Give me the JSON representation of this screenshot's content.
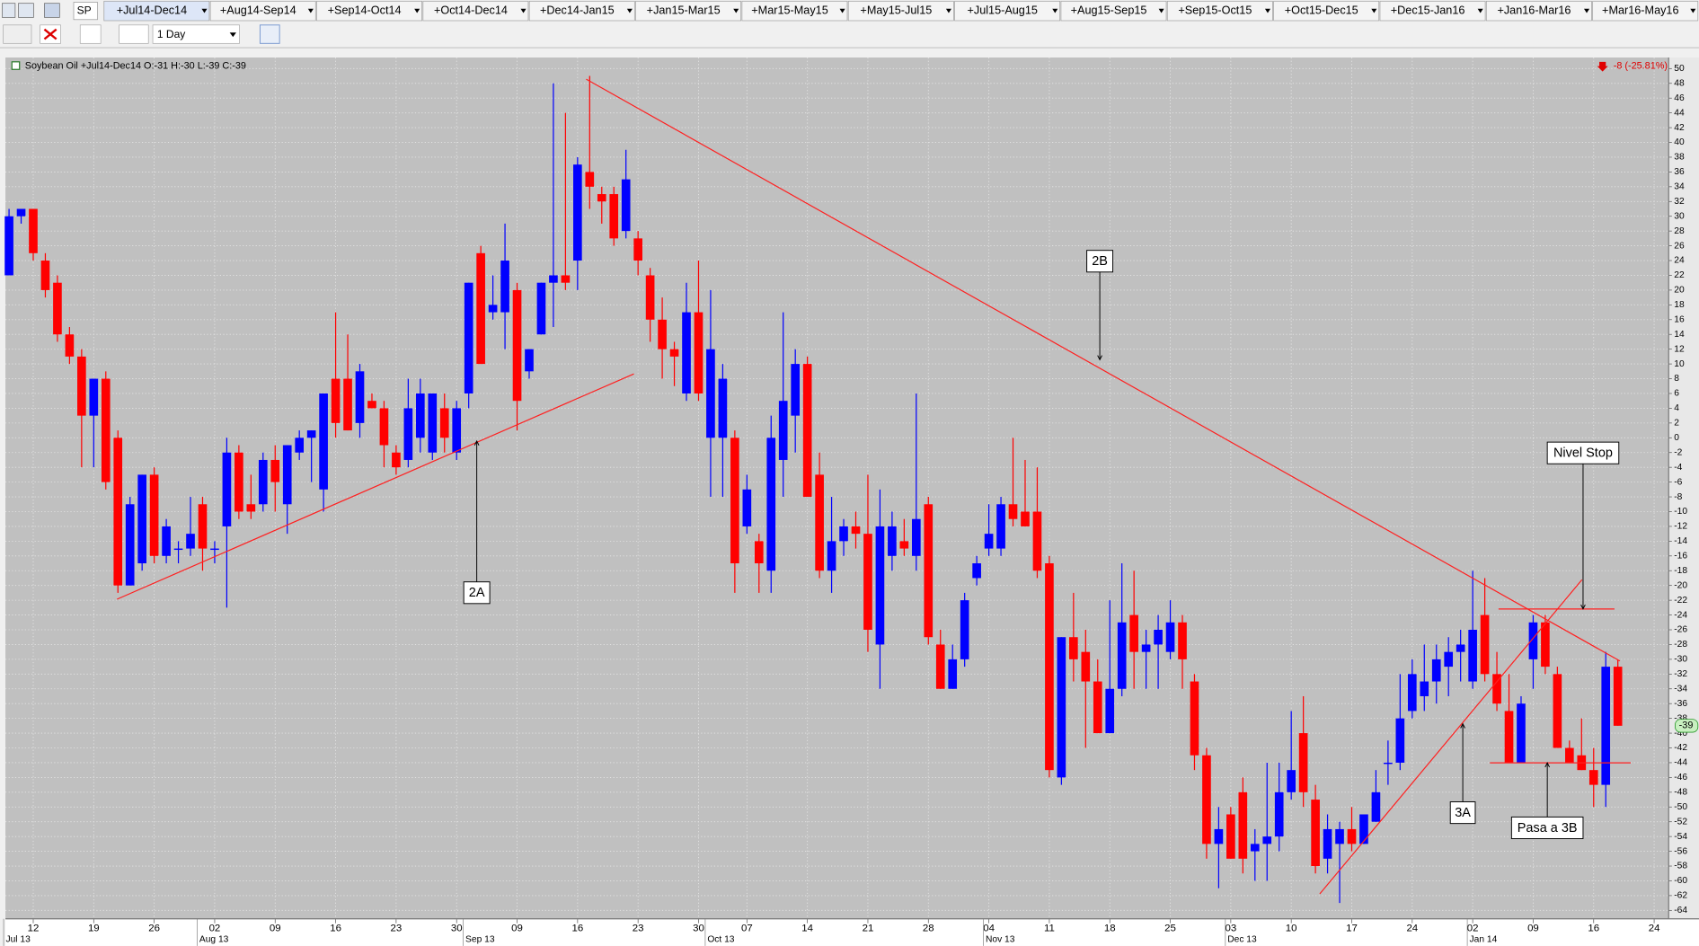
{
  "toolbar": {
    "symbol": "SP",
    "interval": "1 Day",
    "tabs": [
      "+Jul14-Dec14",
      "+Aug14-Sep14",
      "+Sep14-Oct14",
      "+Oct14-Dec14",
      "+Dec14-Jan15",
      "+Jan15-Mar15",
      "+Mar15-May15",
      "+May15-Jul15",
      "+Jul15-Aug15",
      "+Aug15-Sep15",
      "+Sep15-Oct15",
      "+Oct15-Dec15",
      "+Dec15-Jan16",
      "+Jan16-Mar16",
      "+Mar16-May16"
    ]
  },
  "chart_data": {
    "type": "candlestick",
    "title": "Soybean Oil +Jul14-Dec14 O:-31 H:-30 L:-39 C:-39",
    "change_label": "-8 (-25.81%)",
    "last_label": "-39",
    "annotations": [
      "2A",
      "2B",
      "3A",
      "Nivel Stop",
      "Pasa a 3B"
    ],
    "up_color": "#0000ff",
    "down_color": "#ff0000",
    "open": [
      22,
      30,
      31,
      24,
      21,
      14,
      11,
      3,
      8,
      0,
      -20,
      -17,
      -5,
      -16,
      -15,
      -15,
      -9,
      -15,
      -12,
      -2,
      -9,
      -9,
      -3,
      -9,
      -2,
      0,
      -7,
      8,
      8,
      2,
      5,
      4,
      -2,
      -3,
      0,
      -2,
      4,
      -2,
      6,
      25,
      17,
      17,
      20,
      9,
      14,
      21,
      22,
      24,
      36,
      33,
      33,
      28,
      27,
      22,
      16,
      12,
      6,
      17,
      0,
      0,
      0,
      -12,
      -14,
      -18,
      -3,
      3,
      10,
      -5,
      -18,
      -14,
      -12,
      -13,
      -28,
      -16,
      -14,
      -16,
      -9,
      -28,
      -34,
      -30,
      -19,
      -15,
      -15,
      -9,
      -10,
      -10,
      -17,
      -46,
      -27,
      -29,
      -33,
      -40,
      -34,
      -24,
      -29,
      -28,
      -29,
      -25,
      -33,
      -43,
      -55,
      -51,
      -48,
      -56,
      -55,
      -54,
      -48,
      -40,
      -49,
      -57,
      -55,
      -53,
      -55,
      -52,
      -44,
      -44,
      -37,
      -35,
      -33,
      -31,
      -29,
      -33,
      -24,
      -32,
      -37,
      -44,
      -30,
      -25,
      -32,
      -42,
      -43,
      -45,
      -47,
      -31
    ],
    "high": [
      31,
      31,
      31,
      25,
      22,
      15,
      12,
      8,
      9,
      1,
      -8,
      -5,
      -4,
      -11,
      -14,
      -8,
      -8,
      -14,
      0,
      -1,
      -5,
      -2,
      -1,
      -1,
      1,
      1,
      6,
      17,
      14,
      10,
      6,
      5,
      -1,
      8,
      8,
      5,
      6,
      5,
      21,
      26,
      22,
      29,
      21,
      12,
      21,
      48,
      44,
      38,
      49,
      34,
      34,
      39,
      28,
      23,
      19,
      13,
      21,
      24,
      20,
      10,
      1,
      -5,
      -13,
      3,
      17,
      12,
      11,
      -2,
      -8,
      -11,
      -10,
      -5,
      -7,
      -10,
      -11,
      6,
      -8,
      -26,
      -28,
      -21,
      -16,
      -9,
      -8,
      0,
      -3,
      -4,
      -16,
      -27,
      -21,
      -26,
      -30,
      -22,
      -17,
      -18,
      -26,
      -24,
      -22,
      -24,
      -32,
      -42,
      -50,
      -50,
      -46,
      -53,
      -44,
      -44,
      -37,
      -35,
      -47,
      -51,
      -52,
      -50,
      -51,
      -45,
      -41,
      -32,
      -30,
      -28,
      -28,
      -27,
      -26,
      -18,
      -19,
      -29,
      -32,
      -35,
      -24,
      -24,
      -31,
      -41,
      -38,
      -42,
      -29,
      -30
    ],
    "low": [
      22,
      29,
      24,
      19,
      13,
      10,
      -4,
      -4,
      -7,
      -21,
      -20,
      -18,
      -17,
      -17,
      -17,
      -16,
      -18,
      -17,
      -23,
      -11,
      -11,
      -10,
      -10,
      -13,
      -3,
      -6,
      -10,
      0,
      1,
      0,
      4,
      -4,
      -5,
      -4,
      -2,
      -3,
      -2,
      -3,
      4,
      10,
      16,
      12,
      1,
      8,
      14,
      15,
      20,
      20,
      31,
      29,
      26,
      27,
      22,
      13,
      8,
      7,
      5,
      5,
      -8,
      -8,
      -21,
      -13,
      -21,
      -21,
      -8,
      -2,
      -8,
      -19,
      -21,
      -16,
      -15,
      -29,
      -34,
      -18,
      -16,
      -18,
      -28,
      -34,
      -34,
      -31,
      -20,
      -16,
      -16,
      -12,
      -12,
      -19,
      -46,
      -47,
      -33,
      -42,
      -40,
      -40,
      -35,
      -34,
      -34,
      -34,
      -30,
      -34,
      -45,
      -57,
      -61,
      -57,
      -59,
      -60,
      -60,
      -56,
      -49,
      -50,
      -59,
      -59,
      -63,
      -56,
      -55,
      -52,
      -47,
      -45,
      -38,
      -37,
      -36,
      -35,
      -33,
      -34,
      -33,
      -37,
      -44,
      -44,
      -34,
      -32,
      -42,
      -44,
      -45,
      -50,
      -50,
      -39
    ],
    "close": [
      30,
      31,
      25,
      20,
      14,
      11,
      3,
      8,
      -6,
      -20,
      -9,
      -5,
      -16,
      -12,
      -15,
      -13,
      -15,
      -15,
      -2,
      -10,
      -10,
      -3,
      -6,
      -1,
      0,
      1,
      6,
      2,
      1,
      9,
      4,
      -1,
      -4,
      4,
      6,
      6,
      0,
      4,
      21,
      10,
      18,
      24,
      5,
      12,
      21,
      22,
      21,
      37,
      34,
      32,
      27,
      35,
      24,
      16,
      12,
      11,
      17,
      6,
      12,
      8,
      -17,
      -7,
      -17,
      0,
      5,
      10,
      -8,
      -18,
      -14,
      -12,
      -13,
      -26,
      -12,
      -12,
      -15,
      -11,
      -27,
      -34,
      -30,
      -22,
      -17,
      -13,
      -9,
      -11,
      -12,
      -18,
      -45,
      -27,
      -30,
      -33,
      -40,
      -34,
      -25,
      -29,
      -28,
      -26,
      -25,
      -30,
      -43,
      -55,
      -53,
      -57,
      -57,
      -55,
      -54,
      -48,
      -45,
      -48,
      -58,
      -53,
      -53,
      -55,
      -51,
      -48,
      -44,
      -38,
      -32,
      -33,
      -30,
      -29,
      -28,
      -26,
      -32,
      -36,
      -44,
      -36,
      -25,
      -31,
      -42,
      -44,
      -45,
      -47,
      -31,
      -39
    ],
    "xlim": [
      -0.3,
      137.2
    ],
    "xticks": [
      {
        "value": 2,
        "label": "12"
      },
      {
        "value": 7,
        "label": "19"
      },
      {
        "value": 12,
        "label": "26"
      },
      {
        "value": 17,
        "label": "02"
      },
      {
        "value": 22,
        "label": "09"
      },
      {
        "value": 27,
        "label": "16"
      },
      {
        "value": 32,
        "label": "23"
      },
      {
        "value": 37,
        "label": "30"
      },
      {
        "value": 42,
        "label": "09"
      },
      {
        "value": 47,
        "label": "16"
      },
      {
        "value": 52,
        "label": "23"
      },
      {
        "value": 57,
        "label": "30"
      },
      {
        "value": 61,
        "label": "07"
      },
      {
        "value": 66,
        "label": "14"
      },
      {
        "value": 71,
        "label": "21"
      },
      {
        "value": 76,
        "label": "28"
      },
      {
        "value": 81,
        "label": "04"
      },
      {
        "value": 86,
        "label": "11"
      },
      {
        "value": 91,
        "label": "18"
      },
      {
        "value": 96,
        "label": "25"
      },
      {
        "value": 101,
        "label": "03"
      },
      {
        "value": 106,
        "label": "10"
      },
      {
        "value": 111,
        "label": "17"
      },
      {
        "value": 116,
        "label": "24"
      },
      {
        "value": 121,
        "label": "02"
      },
      {
        "value": 126,
        "label": "09"
      },
      {
        "value": 131,
        "label": "16"
      },
      {
        "value": 136,
        "label": "24"
      }
    ],
    "month_ticks": [
      {
        "value": 0,
        "label": "Jul 13"
      },
      {
        "value": 16,
        "label": "Aug 13"
      },
      {
        "value": 38,
        "label": "Sep 13"
      },
      {
        "value": 58,
        "label": "Oct 13"
      },
      {
        "value": 81,
        "label": "Nov 13"
      },
      {
        "value": 101,
        "label": "Dec 13"
      },
      {
        "value": 121,
        "label": "Jan 14"
      }
    ],
    "ylim": [
      -65,
      51.5
    ],
    "yticks": [
      50,
      48,
      46,
      44,
      42,
      40,
      38,
      36,
      34,
      32,
      30,
      28,
      26,
      24,
      22,
      20,
      18,
      16,
      14,
      12,
      10,
      8,
      6,
      4,
      2,
      0,
      -2,
      -4,
      -6,
      -8,
      -10,
      -12,
      -14,
      -16,
      -18,
      -20,
      -22,
      -24,
      -26,
      -28,
      -30,
      -32,
      -34,
      -36,
      -38,
      -40,
      -42,
      -44,
      -46,
      -48,
      -50,
      -52,
      -54,
      -56,
      -58,
      -60,
      -62,
      -64
    ],
    "grid": true
  }
}
